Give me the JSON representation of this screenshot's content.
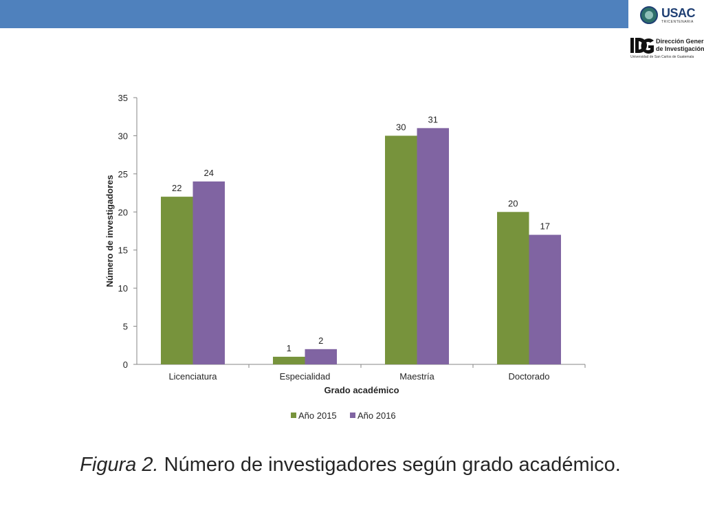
{
  "header": {
    "usac_logo_text": "USAC",
    "usac_logo_subtext": "TRICENTENARIA",
    "dg_logo_line1": "Dirección General",
    "dg_logo_line2": "de Investigación",
    "dg_logo_line3": "Universidad de San Carlos de Guatemala",
    "bar_color": "#4f81bd"
  },
  "chart_data": {
    "type": "bar",
    "categories": [
      "Licenciatura",
      "Especialidad",
      "Maestría",
      "Doctorado"
    ],
    "series": [
      {
        "name": "Año 2015",
        "values": [
          22,
          1,
          30,
          20
        ],
        "color": "#77933c"
      },
      {
        "name": "Año 2016",
        "values": [
          24,
          2,
          31,
          17
        ],
        "color": "#8064a2"
      }
    ],
    "title": "",
    "xlabel": "Grado académico",
    "ylabel": "Número de investigadores",
    "ylim": [
      0,
      35
    ],
    "yticks": [
      0,
      5,
      10,
      15,
      20,
      25,
      30,
      35
    ],
    "grid": false,
    "legend": "bottom",
    "data_labels": true
  },
  "caption": {
    "prefix": "Figura 2.",
    "text": " Número de investigadores según grado académico."
  }
}
